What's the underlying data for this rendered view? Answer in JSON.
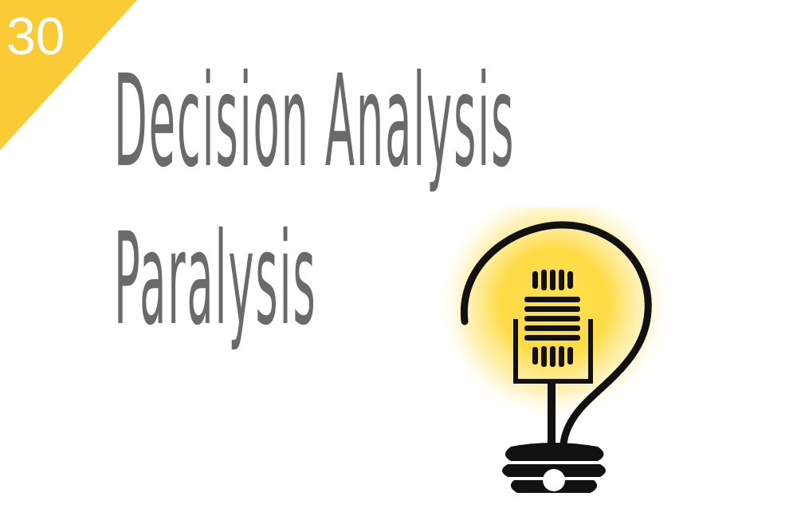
{
  "episode_badge": {
    "number": "30",
    "color": "#fbcb35"
  },
  "title": {
    "line1": "Decision Analysis",
    "line2": "Paralysis",
    "color": "#6a6a6a"
  },
  "logo": {
    "icon": "lightbulb-microphone-icon",
    "glow_color": "#ffd54a",
    "stroke_color": "#111111"
  }
}
